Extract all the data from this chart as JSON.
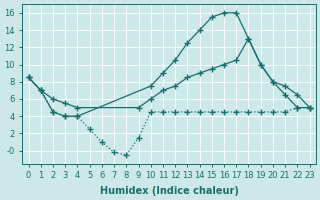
{
  "background_color": "#cce8e8",
  "grid_color": "#b0d8d8",
  "line_color": "#1a6e6e",
  "xlabel": "Humidex (Indice chaleur)",
  "xlim": [
    -0.5,
    23.5
  ],
  "ylim": [
    -1.5,
    17
  ],
  "yticks": [
    0,
    2,
    4,
    6,
    8,
    10,
    12,
    14,
    16
  ],
  "ytick_labels": [
    "-0",
    "2",
    "4",
    "6",
    "8",
    "10",
    "12",
    "14",
    "16"
  ],
  "xticks": [
    0,
    1,
    2,
    3,
    4,
    5,
    6,
    7,
    8,
    9,
    10,
    11,
    12,
    13,
    14,
    15,
    16,
    17,
    18,
    19,
    20,
    21,
    22,
    23
  ],
  "curve_a_x": [
    0,
    1,
    2,
    3,
    4,
    5,
    6,
    7,
    8,
    9,
    10,
    11,
    12,
    13,
    14,
    15,
    16,
    17,
    18,
    19,
    20,
    21,
    22,
    23
  ],
  "curve_a_y": [
    8.5,
    7.0,
    4.5,
    4.0,
    4.0,
    2.5,
    1.0,
    -0.2,
    -0.5,
    1.5,
    4.5,
    4.5,
    4.5,
    4.5,
    4.5,
    4.5,
    4.5,
    4.5,
    4.5,
    4.5,
    4.5,
    4.5,
    5.0,
    5.0
  ],
  "curve_b_x": [
    0,
    1,
    2,
    3,
    4,
    10,
    11,
    12,
    13,
    14,
    15,
    16,
    17,
    18,
    19,
    20,
    21,
    22,
    23
  ],
  "curve_b_y": [
    8.5,
    7.0,
    4.5,
    4.0,
    4.0,
    7.5,
    9.0,
    10.5,
    12.5,
    14.0,
    15.5,
    16.0,
    16.0,
    13.0,
    10.0,
    8.0,
    6.5,
    5.0,
    5.0
  ],
  "curve_c_x": [
    0,
    1,
    2,
    3,
    4,
    9,
    10,
    11,
    12,
    13,
    14,
    15,
    16,
    17,
    18,
    19,
    20,
    21,
    22,
    23
  ],
  "curve_c_y": [
    8.5,
    7.0,
    6.0,
    5.5,
    5.0,
    5.0,
    6.0,
    7.0,
    7.5,
    8.5,
    9.0,
    9.5,
    10.0,
    10.5,
    13.0,
    10.0,
    8.0,
    7.5,
    6.5,
    5.0
  ]
}
